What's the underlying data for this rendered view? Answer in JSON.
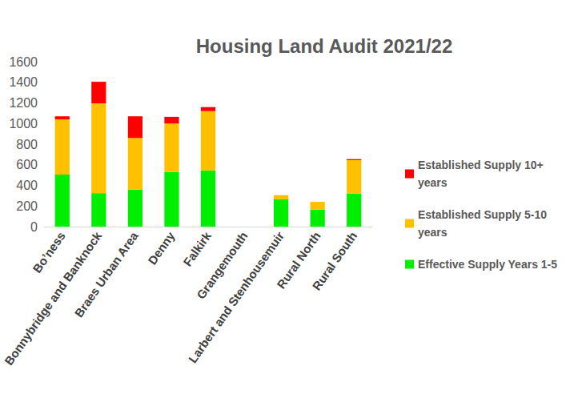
{
  "chart_data": {
    "type": "bar",
    "title": "Housing Land Audit 2021/22",
    "categories": [
      "Bo’ness",
      "Bonnybridge and Banknock",
      "Braes Urban Area",
      "Denny",
      "Falkirk",
      "Grangemouth",
      "Larbert and Stenhousemuir",
      "Rural North",
      "Rural South"
    ],
    "series": [
      {
        "name": "Effective Supply Years 1-5",
        "color": "#00ee00",
        "values": [
          505,
          325,
          360,
          530,
          545,
          0,
          265,
          165,
          320
        ]
      },
      {
        "name": "Established Supply 5-10 years",
        "color": "#ffc000",
        "values": [
          535,
          870,
          500,
          470,
          575,
          0,
          40,
          75,
          325
        ]
      },
      {
        "name": "Established Supply 10+ years",
        "color": "#ff0000",
        "values": [
          30,
          210,
          210,
          65,
          40,
          0,
          0,
          0,
          10
        ]
      }
    ],
    "ylim": [
      0,
      1600
    ],
    "yticks": [
      0,
      200,
      400,
      600,
      800,
      1000,
      1200,
      1400,
      1600
    ],
    "stacked": true,
    "grid": false,
    "legend": "right"
  }
}
